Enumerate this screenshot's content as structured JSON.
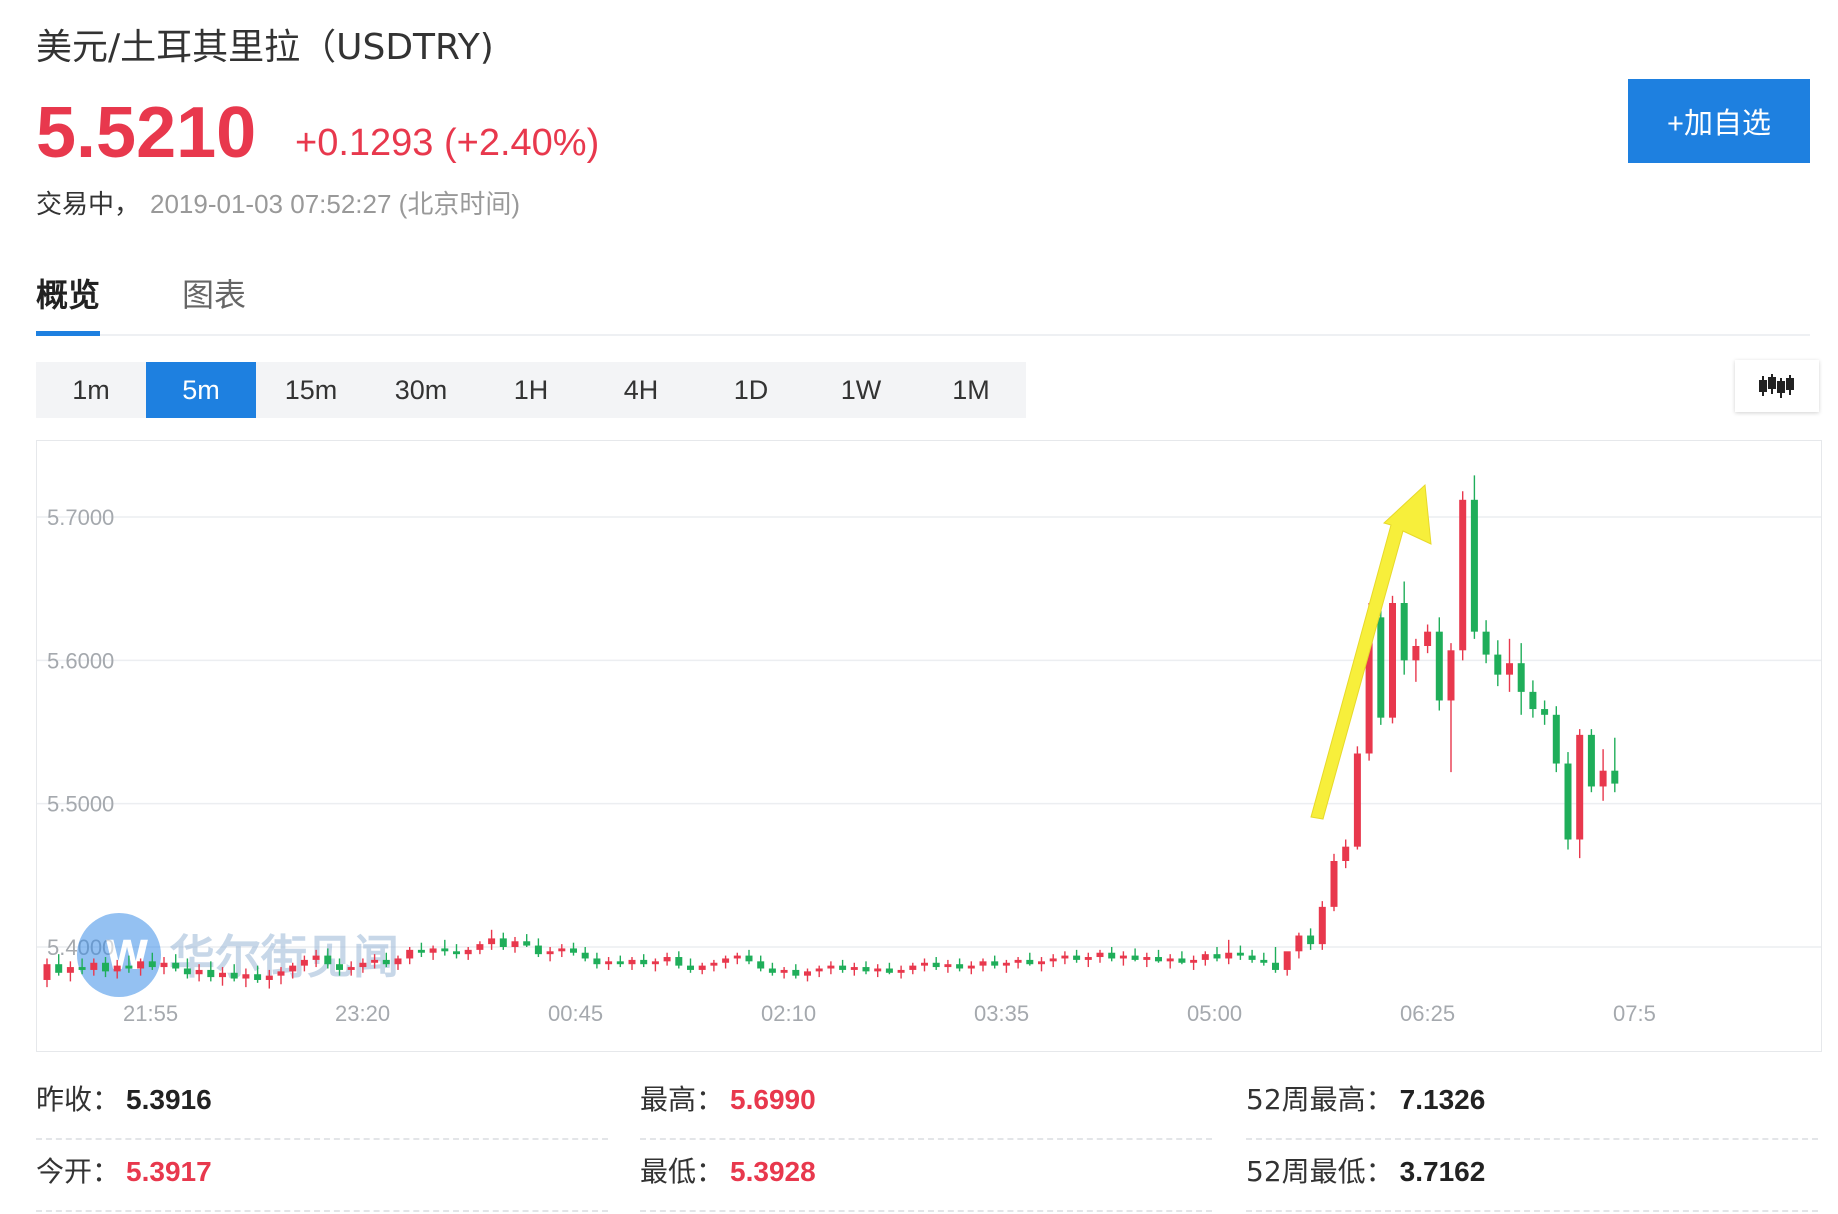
{
  "header": {
    "title": "美元/土耳其里拉（USDTRY)",
    "price": "5.5210",
    "change": "+0.1293 (+2.40%)",
    "status": "交易中，",
    "timestamp": "2019-01-03 07:52:27 (北京时间)",
    "add_button": "+加自选"
  },
  "tabs": [
    {
      "label": "概览",
      "active": true
    },
    {
      "label": "图表",
      "active": false
    }
  ],
  "periods": [
    {
      "label": "1m",
      "active": false
    },
    {
      "label": "5m",
      "active": true
    },
    {
      "label": "15m",
      "active": false
    },
    {
      "label": "30m",
      "active": false
    },
    {
      "label": "1H",
      "active": false
    },
    {
      "label": "4H",
      "active": false
    },
    {
      "label": "1D",
      "active": false
    },
    {
      "label": "1W",
      "active": false
    },
    {
      "label": "1M",
      "active": false
    }
  ],
  "chart_type_icon": "candlestick-icon",
  "watermark": "华尔街见闻",
  "colors": {
    "up": "#e8384d",
    "down": "#1fae5a",
    "accent": "#1e80e0",
    "arrow": "#f7ef3b"
  },
  "chart_data": {
    "type": "candlestick",
    "y_ticks": [
      "5.7000",
      "5.6000",
      "5.5000",
      "5.4000"
    ],
    "x_ticks": [
      "21:55",
      "23:20",
      "00:45",
      "02:10",
      "03:35",
      "05:00",
      "06:25",
      "07:5"
    ],
    "ylim": [
      5.335,
      5.752
    ],
    "grid": true,
    "annotation": "yellow upward arrow over the 06:00–06:45 rally",
    "candles": [
      [
        5.377,
        5.392,
        5.372,
        5.388
      ],
      [
        5.388,
        5.395,
        5.38,
        5.382
      ],
      [
        5.382,
        5.39,
        5.376,
        5.386
      ],
      [
        5.386,
        5.392,
        5.381,
        5.384
      ],
      [
        5.384,
        5.392,
        5.38,
        5.389
      ],
      [
        5.389,
        5.393,
        5.379,
        5.383
      ],
      [
        5.383,
        5.391,
        5.378,
        5.387
      ],
      [
        5.387,
        5.394,
        5.382,
        5.385
      ],
      [
        5.385,
        5.392,
        5.38,
        5.39
      ],
      [
        5.39,
        5.396,
        5.384,
        5.386
      ],
      [
        5.386,
        5.393,
        5.381,
        5.389
      ],
      [
        5.389,
        5.395,
        5.383,
        5.385
      ],
      [
        5.385,
        5.392,
        5.378,
        5.381
      ],
      [
        5.381,
        5.388,
        5.376,
        5.384
      ],
      [
        5.384,
        5.39,
        5.376,
        5.379
      ],
      [
        5.379,
        5.386,
        5.373,
        5.382
      ],
      [
        5.382,
        5.388,
        5.376,
        5.378
      ],
      [
        5.378,
        5.385,
        5.372,
        5.381
      ],
      [
        5.381,
        5.387,
        5.375,
        5.377
      ],
      [
        5.377,
        5.384,
        5.371,
        5.38
      ],
      [
        5.38,
        5.386,
        5.374,
        5.383
      ],
      [
        5.383,
        5.389,
        5.378,
        5.387
      ],
      [
        5.387,
        5.394,
        5.383,
        5.391
      ],
      [
        5.391,
        5.398,
        5.386,
        5.394
      ],
      [
        5.394,
        5.399,
        5.385,
        5.388
      ],
      [
        5.388,
        5.392,
        5.38,
        5.384
      ],
      [
        5.384,
        5.39,
        5.38,
        5.386
      ],
      [
        5.386,
        5.392,
        5.382,
        5.389
      ],
      [
        5.389,
        5.395,
        5.385,
        5.391
      ],
      [
        5.391,
        5.396,
        5.386,
        5.388
      ],
      [
        5.388,
        5.394,
        5.384,
        5.392
      ],
      [
        5.392,
        5.4,
        5.388,
        5.398
      ],
      [
        5.398,
        5.403,
        5.393,
        5.396
      ],
      [
        5.396,
        5.401,
        5.391,
        5.399
      ],
      [
        5.399,
        5.405,
        5.394,
        5.397
      ],
      [
        5.397,
        5.402,
        5.392,
        5.395
      ],
      [
        5.395,
        5.4,
        5.391,
        5.398
      ],
      [
        5.398,
        5.404,
        5.395,
        5.402
      ],
      [
        5.402,
        5.412,
        5.398,
        5.406
      ],
      [
        5.406,
        5.41,
        5.398,
        5.4
      ],
      [
        5.4,
        5.407,
        5.396,
        5.404
      ],
      [
        5.404,
        5.409,
        5.4,
        5.401
      ],
      [
        5.401,
        5.406,
        5.393,
        5.395
      ],
      [
        5.395,
        5.4,
        5.39,
        5.397
      ],
      [
        5.397,
        5.402,
        5.393,
        5.399
      ],
      [
        5.399,
        5.403,
        5.394,
        5.396
      ],
      [
        5.396,
        5.4,
        5.39,
        5.392
      ],
      [
        5.392,
        5.396,
        5.385,
        5.388
      ],
      [
        5.388,
        5.393,
        5.384,
        5.39
      ],
      [
        5.39,
        5.394,
        5.386,
        5.388
      ],
      [
        5.388,
        5.393,
        5.384,
        5.391
      ],
      [
        5.391,
        5.395,
        5.386,
        5.388
      ],
      [
        5.388,
        5.392,
        5.383,
        5.39
      ],
      [
        5.39,
        5.396,
        5.387,
        5.393
      ],
      [
        5.393,
        5.397,
        5.385,
        5.387
      ],
      [
        5.387,
        5.392,
        5.382,
        5.384
      ],
      [
        5.384,
        5.389,
        5.381,
        5.387
      ],
      [
        5.387,
        5.391,
        5.383,
        5.389
      ],
      [
        5.389,
        5.394,
        5.385,
        5.392
      ],
      [
        5.392,
        5.396,
        5.388,
        5.394
      ],
      [
        5.394,
        5.398,
        5.388,
        5.39
      ],
      [
        5.39,
        5.394,
        5.383,
        5.385
      ],
      [
        5.385,
        5.389,
        5.38,
        5.382
      ],
      [
        5.382,
        5.386,
        5.378,
        5.384
      ],
      [
        5.384,
        5.388,
        5.378,
        5.38
      ],
      [
        5.38,
        5.385,
        5.376,
        5.383
      ],
      [
        5.383,
        5.387,
        5.379,
        5.385
      ],
      [
        5.385,
        5.39,
        5.381,
        5.387
      ],
      [
        5.387,
        5.391,
        5.382,
        5.384
      ],
      [
        5.384,
        5.389,
        5.38,
        5.386
      ],
      [
        5.386,
        5.39,
        5.381,
        5.383
      ],
      [
        5.383,
        5.388,
        5.379,
        5.385
      ],
      [
        5.385,
        5.389,
        5.381,
        5.382
      ],
      [
        5.382,
        5.387,
        5.378,
        5.384
      ],
      [
        5.384,
        5.389,
        5.381,
        5.387
      ],
      [
        5.387,
        5.392,
        5.383,
        5.389
      ],
      [
        5.389,
        5.393,
        5.384,
        5.386
      ],
      [
        5.386,
        5.391,
        5.382,
        5.388
      ],
      [
        5.388,
        5.392,
        5.383,
        5.385
      ],
      [
        5.385,
        5.39,
        5.381,
        5.387
      ],
      [
        5.387,
        5.392,
        5.383,
        5.39
      ],
      [
        5.39,
        5.394,
        5.385,
        5.387
      ],
      [
        5.387,
        5.391,
        5.382,
        5.389
      ],
      [
        5.389,
        5.393,
        5.385,
        5.391
      ],
      [
        5.391,
        5.396,
        5.387,
        5.388
      ],
      [
        5.388,
        5.393,
        5.383,
        5.39
      ],
      [
        5.39,
        5.395,
        5.386,
        5.392
      ],
      [
        5.392,
        5.397,
        5.388,
        5.394
      ],
      [
        5.394,
        5.398,
        5.389,
        5.391
      ],
      [
        5.391,
        5.396,
        5.386,
        5.393
      ],
      [
        5.393,
        5.398,
        5.389,
        5.396
      ],
      [
        5.396,
        5.4,
        5.39,
        5.392
      ],
      [
        5.392,
        5.397,
        5.387,
        5.394
      ],
      [
        5.394,
        5.399,
        5.39,
        5.391
      ],
      [
        5.391,
        5.396,
        5.386,
        5.393
      ],
      [
        5.393,
        5.398,
        5.389,
        5.39
      ],
      [
        5.39,
        5.395,
        5.385,
        5.392
      ],
      [
        5.392,
        5.397,
        5.388,
        5.389
      ],
      [
        5.389,
        5.394,
        5.384,
        5.391
      ],
      [
        5.391,
        5.397,
        5.387,
        5.395
      ],
      [
        5.395,
        5.4,
        5.39,
        5.392
      ],
      [
        5.392,
        5.405,
        5.388,
        5.396
      ],
      [
        5.396,
        5.401,
        5.391,
        5.394
      ],
      [
        5.394,
        5.398,
        5.389,
        5.391
      ],
      [
        5.391,
        5.396,
        5.387,
        5.389
      ],
      [
        5.389,
        5.4,
        5.382,
        5.384
      ],
      [
        5.384,
        5.393,
        5.38,
        5.397
      ],
      [
        5.397,
        5.41,
        5.392,
        5.408
      ],
      [
        5.408,
        5.413,
        5.398,
        5.402
      ],
      [
        5.402,
        5.432,
        5.398,
        5.428
      ],
      [
        5.428,
        5.465,
        5.425,
        5.46
      ],
      [
        5.46,
        5.475,
        5.455,
        5.47
      ],
      [
        5.47,
        5.54,
        5.468,
        5.535
      ],
      [
        5.535,
        5.64,
        5.53,
        5.63
      ],
      [
        5.63,
        5.65,
        5.555,
        5.56
      ],
      [
        5.56,
        5.645,
        5.556,
        5.64
      ],
      [
        5.64,
        5.655,
        5.59,
        5.6
      ],
      [
        5.6,
        5.615,
        5.585,
        5.61
      ],
      [
        5.61,
        5.625,
        5.605,
        5.62
      ],
      [
        5.62,
        5.63,
        5.565,
        5.572
      ],
      [
        5.572,
        5.612,
        5.522,
        5.607
      ],
      [
        5.607,
        5.718,
        5.6,
        5.712
      ],
      [
        5.712,
        5.729,
        5.615,
        5.62
      ],
      [
        5.62,
        5.628,
        5.598,
        5.604
      ],
      [
        5.604,
        5.614,
        5.582,
        5.59
      ],
      [
        5.59,
        5.615,
        5.578,
        5.598
      ],
      [
        5.598,
        5.612,
        5.562,
        5.578
      ],
      [
        5.578,
        5.586,
        5.56,
        5.566
      ],
      [
        5.566,
        5.572,
        5.555,
        5.562
      ],
      [
        5.562,
        5.568,
        5.522,
        5.528
      ],
      [
        5.528,
        5.536,
        5.468,
        5.475
      ],
      [
        5.475,
        5.552,
        5.462,
        5.548
      ],
      [
        5.548,
        5.552,
        5.508,
        5.512
      ],
      [
        5.512,
        5.538,
        5.502,
        5.523
      ],
      [
        5.523,
        5.546,
        5.508,
        5.514
      ]
    ]
  },
  "stats": [
    {
      "label": "昨收：",
      "value": "5.3916",
      "tone": "dark"
    },
    {
      "label": "最高：",
      "value": "5.6990",
      "tone": "red"
    },
    {
      "label": "52周最高：",
      "value": "7.1326",
      "tone": "dark"
    },
    {
      "label": "今开：",
      "value": "5.3917",
      "tone": "red"
    },
    {
      "label": "最低：",
      "value": "5.3928",
      "tone": "red"
    },
    {
      "label": "52周最低：",
      "value": "3.7162",
      "tone": "dark"
    }
  ]
}
